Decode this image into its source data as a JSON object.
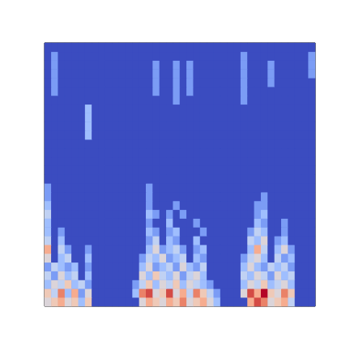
{
  "chart_data": {
    "type": "heatmap",
    "tick_labels": false,
    "color_range": [
      0,
      1
    ],
    "z": [
      [
        0.5,
        0.6,
        0.7,
        0.5,
        0.6,
        0.3,
        0.6,
        0,
        0,
        0,
        0,
        0,
        0,
        0,
        0.5,
        0.7,
        0.6,
        0.5,
        0.7,
        0.6,
        0.8,
        0.5,
        0.6,
        0.7,
        0.5,
        0.3,
        0,
        0,
        0,
        0,
        0.7,
        0.9,
        0.8,
        0.5,
        0.6,
        0.7,
        0.4,
        0,
        0,
        0
      ],
      [
        0.6,
        0.4,
        0.8,
        0.3,
        0.7,
        0.2,
        0.5,
        0,
        0,
        0,
        0,
        0,
        0,
        0.3,
        0.8,
        0.9,
        0.5,
        0.6,
        0.9,
        0.5,
        0.7,
        0.4,
        0.8,
        0.6,
        0.4,
        0.2,
        0,
        0,
        0,
        0.5,
        0.9,
        0.7,
        1.0,
        0.6,
        0.5,
        0.8,
        0.6,
        0,
        0,
        0
      ],
      [
        0.3,
        0.5,
        0.4,
        0.6,
        0.3,
        0.4,
        0.2,
        0,
        0,
        0,
        0,
        0,
        0,
        0.2,
        0.4,
        0.6,
        0.3,
        0.5,
        0.4,
        0.6,
        0.3,
        0.5,
        0.4,
        0.3,
        0.2,
        0,
        0,
        0,
        0,
        0.3,
        0.5,
        0.4,
        0.6,
        0.3,
        0.4,
        0.5,
        0.3,
        0,
        0,
        0
      ],
      [
        0.4,
        0.2,
        0.5,
        0.3,
        0.4,
        0,
        0.3,
        0,
        0,
        0,
        0,
        0,
        0,
        0,
        0.5,
        0.3,
        0.6,
        0.4,
        0.3,
        0.5,
        0.2,
        0.4,
        0.5,
        0.3,
        0,
        0,
        0,
        0,
        0,
        0.4,
        0.3,
        0.5,
        0.4,
        0.2,
        0.5,
        0.3,
        0.4,
        0,
        0,
        0
      ],
      [
        0.2,
        0.4,
        0.3,
        0.2,
        0.3,
        0,
        0.2,
        0,
        0,
        0,
        0,
        0,
        0,
        0,
        0.3,
        0.5,
        0.2,
        0.3,
        0.4,
        0.2,
        0.5,
        0.3,
        0.2,
        0.4,
        0,
        0,
        0,
        0,
        0,
        0.3,
        0.5,
        0.3,
        0.2,
        0.4,
        0.3,
        0.4,
        0.2,
        0,
        0,
        0
      ],
      [
        0.5,
        0,
        0.3,
        0.4,
        0,
        0,
        0.3,
        0,
        0,
        0,
        0,
        0,
        0,
        0,
        0.2,
        0.4,
        0.3,
        0.5,
        0.2,
        0.3,
        0.4,
        0,
        0.3,
        0.2,
        0,
        0,
        0,
        0,
        0,
        0.2,
        0.4,
        0.5,
        0.3,
        0,
        0.4,
        0.2,
        0.3,
        0,
        0,
        0
      ],
      [
        0.7,
        0,
        0.4,
        0.2,
        0,
        0,
        0.2,
        0,
        0,
        0,
        0,
        0,
        0,
        0,
        0,
        0.3,
        0.5,
        0.2,
        0.3,
        0.4,
        0.2,
        0,
        0.2,
        0.3,
        0,
        0,
        0,
        0,
        0,
        0,
        0.3,
        0.7,
        0.4,
        0,
        0.3,
        0.5,
        0.2,
        0,
        0,
        0
      ],
      [
        0.4,
        0,
        0.3,
        0,
        0,
        0,
        0,
        0,
        0,
        0,
        0,
        0,
        0,
        0,
        0,
        0.2,
        0.4,
        0,
        0.3,
        0.2,
        0,
        0,
        0.3,
        0,
        0,
        0,
        0,
        0,
        0,
        0,
        0.4,
        0.3,
        0.5,
        0,
        0.2,
        0.3,
        0,
        0,
        0,
        0
      ],
      [
        0.3,
        0,
        0.2,
        0,
        0,
        0,
        0,
        0,
        0,
        0,
        0,
        0,
        0,
        0,
        0,
        0.3,
        0.2,
        0,
        0.2,
        0.3,
        0,
        0,
        0,
        0.2,
        0,
        0,
        0,
        0,
        0,
        0,
        0.2,
        0.4,
        0.3,
        0,
        0,
        0.2,
        0,
        0,
        0,
        0
      ],
      [
        0.3,
        0,
        0,
        0,
        0,
        0,
        0,
        0,
        0,
        0,
        0,
        0,
        0,
        0,
        0,
        0.2,
        0,
        0,
        0.3,
        0,
        0,
        0,
        0.2,
        0,
        0,
        0,
        0,
        0,
        0,
        0,
        0,
        0.3,
        0.2,
        0,
        0,
        0.2,
        0,
        0,
        0,
        0
      ],
      [
        0.4,
        0,
        0,
        0,
        0,
        0,
        0,
        0,
        0,
        0,
        0,
        0,
        0,
        0,
        0,
        0.3,
        0.2,
        0,
        0.2,
        0,
        0.2,
        0,
        0,
        0,
        0,
        0,
        0,
        0,
        0,
        0,
        0,
        0.2,
        0.3,
        0,
        0,
        0,
        0,
        0,
        0,
        0
      ],
      [
        0.3,
        0,
        0,
        0,
        0,
        0,
        0,
        0,
        0,
        0,
        0,
        0,
        0,
        0,
        0,
        0.2,
        0,
        0,
        0,
        0.2,
        0,
        0,
        0,
        0,
        0,
        0,
        0,
        0,
        0,
        0,
        0,
        0.2,
        0.2,
        0,
        0,
        0,
        0,
        0,
        0,
        0
      ],
      [
        0.2,
        0,
        0,
        0,
        0,
        0,
        0,
        0,
        0,
        0,
        0,
        0,
        0,
        0,
        0,
        0.2,
        0,
        0,
        0,
        0,
        0,
        0,
        0,
        0,
        0,
        0,
        0,
        0,
        0,
        0,
        0,
        0,
        0.2,
        0,
        0,
        0,
        0,
        0,
        0,
        0
      ],
      [
        0.2,
        0,
        0,
        0,
        0,
        0,
        0,
        0,
        0,
        0,
        0,
        0,
        0,
        0,
        0,
        0.2,
        0,
        0,
        0,
        0,
        0,
        0,
        0,
        0,
        0,
        0,
        0,
        0,
        0,
        0,
        0,
        0,
        0,
        0,
        0,
        0,
        0,
        0,
        0,
        0
      ],
      [
        0,
        0,
        0,
        0,
        0,
        0,
        0,
        0,
        0,
        0,
        0,
        0,
        0,
        0,
        0,
        0,
        0,
        0,
        0,
        0,
        0,
        0,
        0,
        0,
        0,
        0,
        0,
        0,
        0,
        0,
        0,
        0,
        0,
        0,
        0,
        0,
        0,
        0,
        0,
        0
      ],
      [
        0,
        0,
        0,
        0,
        0,
        0,
        0,
        0,
        0,
        0,
        0,
        0,
        0,
        0,
        0,
        0,
        0,
        0,
        0,
        0,
        0,
        0,
        0,
        0,
        0,
        0,
        0,
        0,
        0,
        0,
        0,
        0,
        0,
        0,
        0,
        0,
        0,
        0,
        0,
        0
      ],
      [
        0,
        0,
        0,
        0,
        0,
        0,
        0,
        0,
        0,
        0,
        0,
        0,
        0,
        0,
        0,
        0,
        0,
        0,
        0,
        0,
        0,
        0,
        0,
        0,
        0,
        0,
        0,
        0,
        0,
        0,
        0,
        0,
        0,
        0,
        0,
        0,
        0,
        0,
        0,
        0
      ],
      [
        0,
        0,
        0,
        0,
        0,
        0,
        0,
        0,
        0,
        0,
        0,
        0,
        0,
        0,
        0,
        0,
        0,
        0,
        0,
        0,
        0,
        0,
        0,
        0,
        0,
        0,
        0,
        0,
        0,
        0,
        0,
        0,
        0,
        0,
        0,
        0,
        0,
        0,
        0,
        0
      ],
      [
        0,
        0,
        0,
        0,
        0,
        0,
        0,
        0,
        0,
        0,
        0,
        0,
        0,
        0,
        0,
        0,
        0,
        0,
        0,
        0,
        0,
        0,
        0,
        0,
        0,
        0,
        0,
        0,
        0,
        0,
        0,
        0,
        0,
        0,
        0,
        0,
        0,
        0,
        0,
        0
      ],
      [
        0,
        0,
        0,
        0,
        0,
        0,
        0.3,
        0,
        0,
        0,
        0,
        0,
        0,
        0,
        0,
        0,
        0,
        0,
        0,
        0,
        0,
        0,
        0,
        0,
        0,
        0,
        0,
        0,
        0,
        0,
        0,
        0,
        0,
        0,
        0,
        0,
        0,
        0,
        0,
        0
      ],
      [
        0,
        0,
        0,
        0,
        0,
        0,
        0.3,
        0,
        0,
        0,
        0,
        0,
        0,
        0,
        0,
        0,
        0,
        0,
        0,
        0,
        0,
        0,
        0,
        0,
        0,
        0,
        0,
        0,
        0,
        0,
        0,
        0,
        0,
        0,
        0,
        0,
        0,
        0,
        0,
        0
      ],
      [
        0,
        0,
        0,
        0,
        0,
        0,
        0.3,
        0,
        0,
        0,
        0,
        0,
        0,
        0,
        0,
        0,
        0,
        0,
        0,
        0,
        0,
        0,
        0,
        0,
        0,
        0,
        0,
        0,
        0,
        0,
        0,
        0,
        0,
        0,
        0,
        0,
        0,
        0,
        0,
        0
      ],
      [
        0,
        0,
        0,
        0,
        0,
        0,
        0.3,
        0,
        0,
        0,
        0,
        0,
        0,
        0,
        0,
        0,
        0,
        0,
        0,
        0,
        0,
        0,
        0,
        0,
        0,
        0,
        0,
        0,
        0,
        0,
        0,
        0,
        0,
        0,
        0,
        0,
        0,
        0,
        0,
        0
      ],
      [
        0,
        0,
        0,
        0,
        0,
        0,
        0,
        0,
        0,
        0,
        0,
        0,
        0,
        0,
        0,
        0,
        0,
        0,
        0,
        0.2,
        0,
        0,
        0,
        0,
        0,
        0,
        0,
        0,
        0,
        0.2,
        0,
        0,
        0,
        0,
        0,
        0,
        0,
        0,
        0,
        0
      ],
      [
        0,
        0.2,
        0,
        0,
        0,
        0,
        0,
        0,
        0,
        0,
        0,
        0,
        0,
        0,
        0,
        0,
        0.2,
        0,
        0,
        0.2,
        0,
        0.2,
        0,
        0,
        0,
        0,
        0,
        0,
        0,
        0.2,
        0,
        0,
        0,
        0,
        0,
        0,
        0,
        0,
        0,
        0
      ],
      [
        0,
        0.2,
        0,
        0,
        0,
        0,
        0,
        0,
        0,
        0,
        0,
        0,
        0,
        0,
        0,
        0,
        0.2,
        0,
        0,
        0.2,
        0,
        0.2,
        0,
        0,
        0,
        0,
        0,
        0,
        0,
        0.2,
        0,
        0,
        0,
        0.2,
        0,
        0,
        0,
        0,
        0,
        0
      ],
      [
        0,
        0.2,
        0,
        0,
        0,
        0,
        0,
        0,
        0,
        0,
        0,
        0,
        0,
        0,
        0,
        0,
        0.2,
        0,
        0,
        0.2,
        0,
        0.2,
        0,
        0,
        0,
        0,
        0,
        0,
        0,
        0.2,
        0,
        0,
        0,
        0.2,
        0,
        0,
        0,
        0,
        0,
        0.2
      ],
      [
        0,
        0.2,
        0,
        0,
        0,
        0,
        0,
        0,
        0,
        0,
        0,
        0,
        0,
        0,
        0,
        0,
        0.2,
        0,
        0,
        0.2,
        0,
        0.2,
        0,
        0,
        0,
        0,
        0,
        0,
        0,
        0.2,
        0,
        0,
        0,
        0.2,
        0,
        0,
        0,
        0,
        0,
        0.2
      ],
      [
        0,
        0.2,
        0,
        0,
        0,
        0,
        0,
        0,
        0,
        0,
        0,
        0,
        0,
        0,
        0,
        0,
        0,
        0,
        0,
        0,
        0,
        0,
        0,
        0,
        0,
        0,
        0,
        0,
        0,
        0.2,
        0,
        0,
        0,
        0,
        0,
        0,
        0,
        0,
        0,
        0.2
      ],
      [
        0,
        0,
        0,
        0,
        0,
        0,
        0,
        0,
        0,
        0,
        0,
        0,
        0,
        0,
        0,
        0,
        0,
        0,
        0,
        0,
        0,
        0,
        0,
        0,
        0,
        0,
        0,
        0,
        0,
        0,
        0,
        0,
        0,
        0,
        0,
        0,
        0,
        0,
        0,
        0
      ]
    ]
  }
}
